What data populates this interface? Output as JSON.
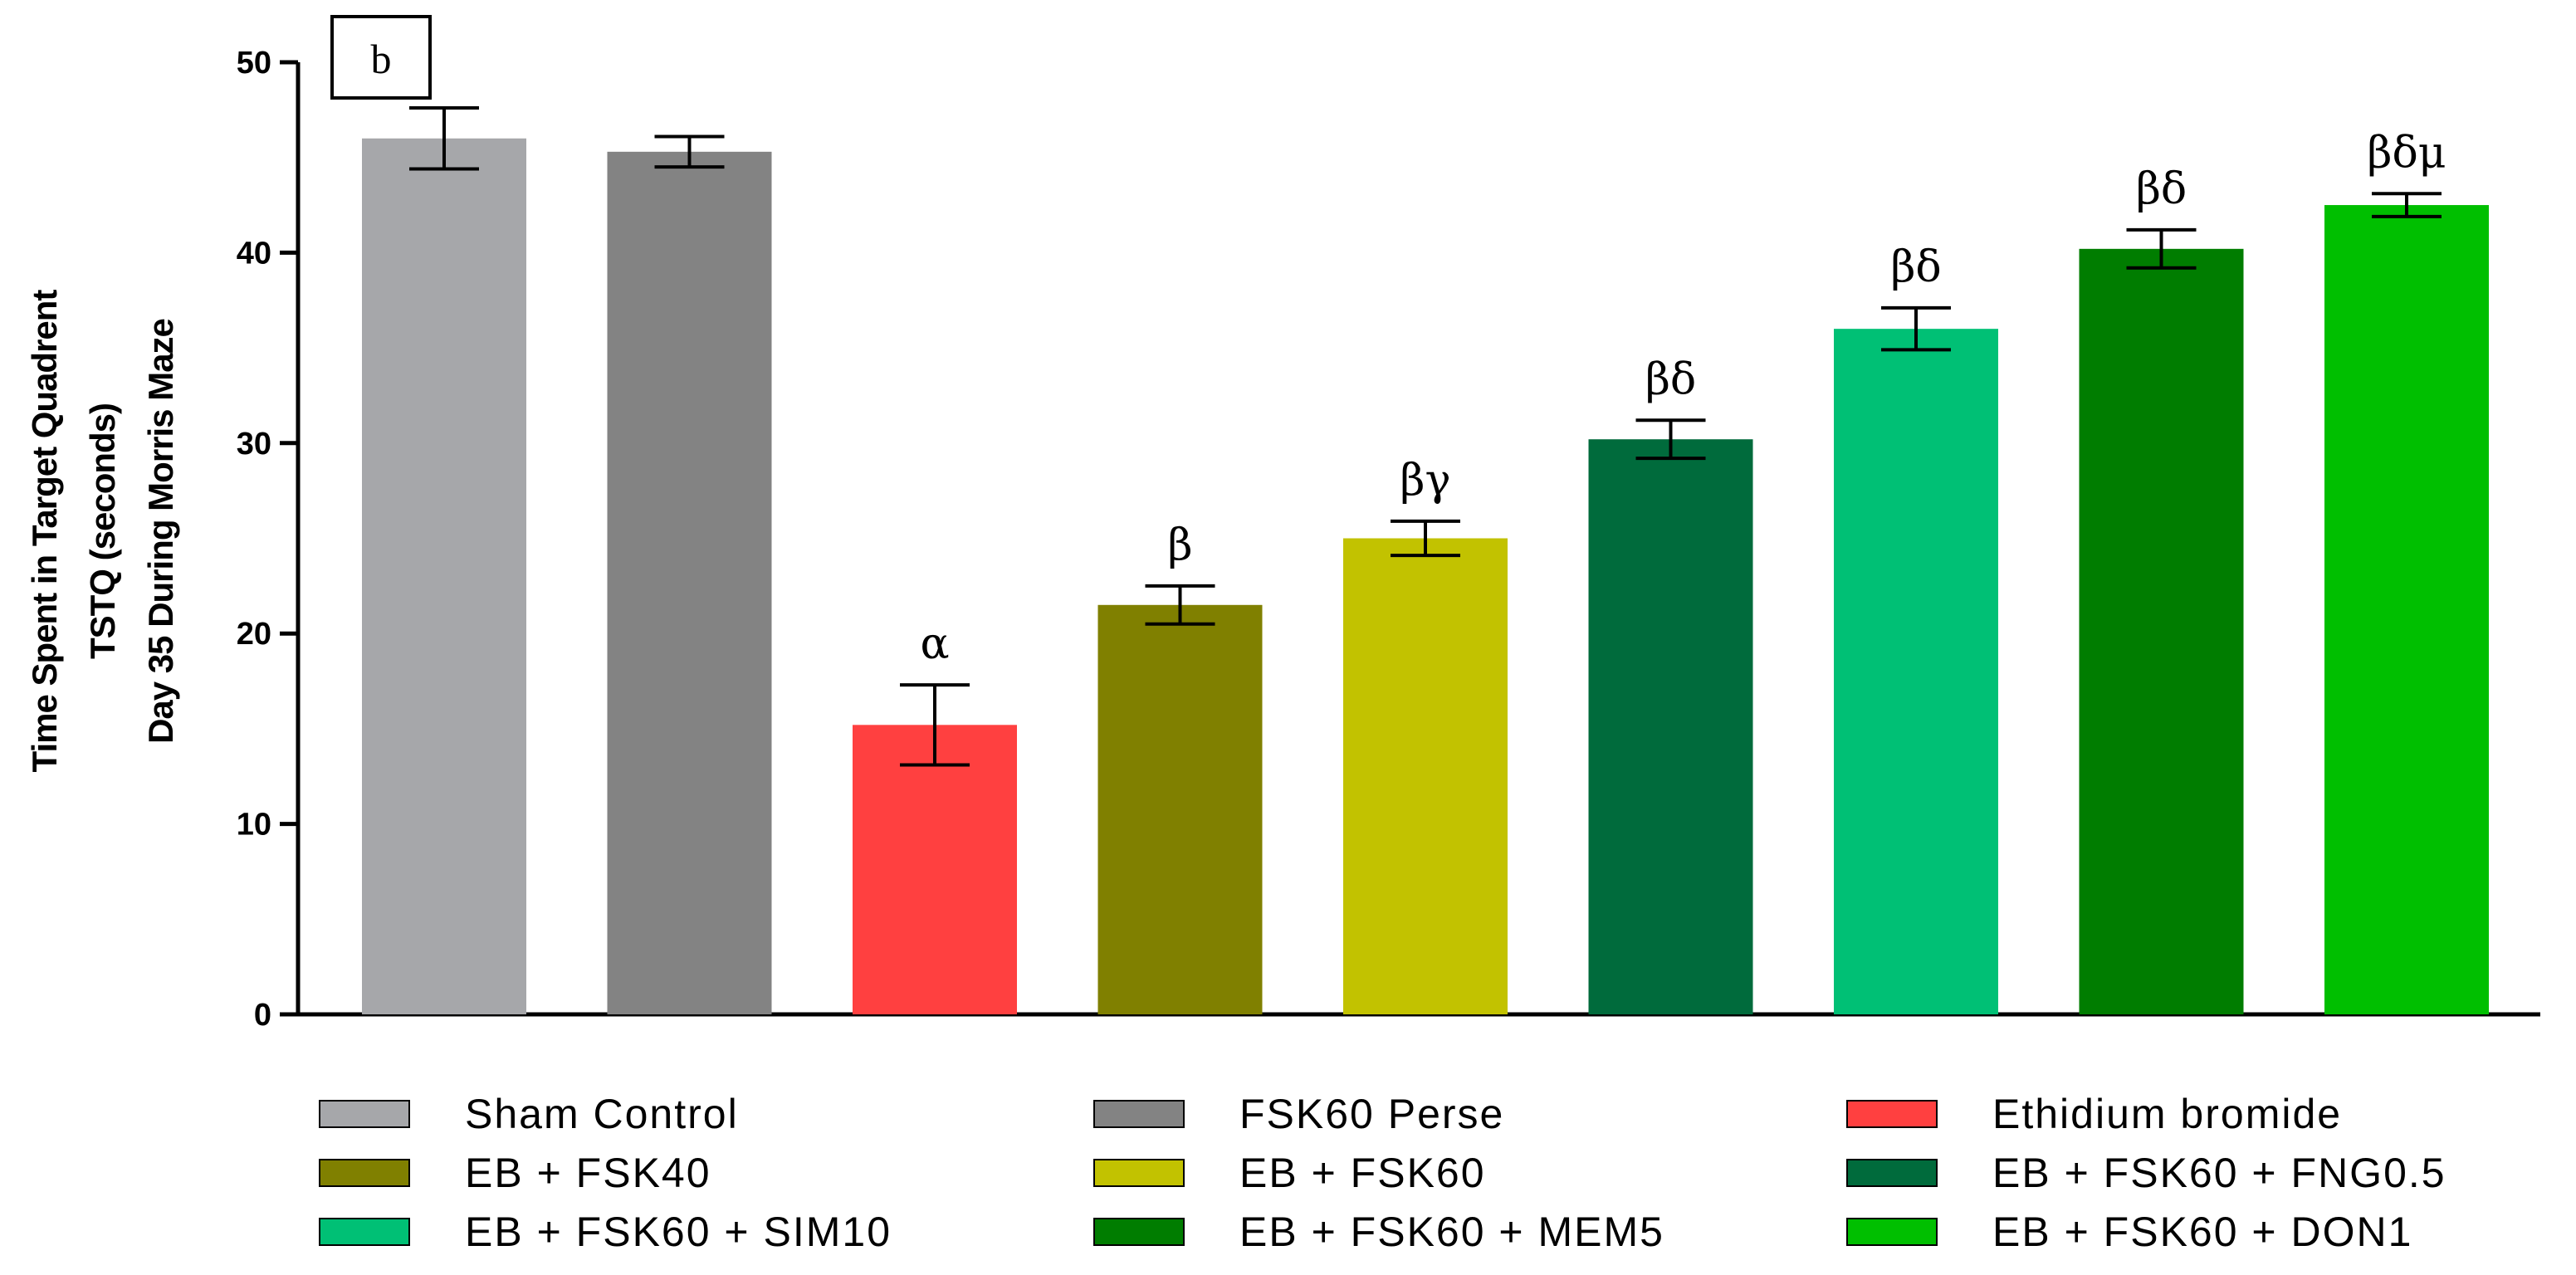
{
  "chart_data": {
    "type": "bar",
    "panel_label": "b",
    "ylabel_lines": [
      "Time Spent in Target Quadrent",
      "TSTQ (seconds)",
      "Day 35 During Morris Maze"
    ],
    "ylim": [
      0,
      50
    ],
    "yticks": [
      0,
      10,
      20,
      30,
      40,
      50
    ],
    "grid": false,
    "legend_position": "bottom",
    "bars": [
      {
        "name": "Sham Control",
        "value": 46.0,
        "error": 1.6,
        "color": "#a6a7aa",
        "sig": ""
      },
      {
        "name": "FSK60 Perse",
        "value": 45.3,
        "error": 0.8,
        "color": "#838383",
        "sig": ""
      },
      {
        "name": "Ethidium bromide",
        "value": 15.2,
        "error": 2.1,
        "color": "#ff4040",
        "sig": "α"
      },
      {
        "name": "EB + FSK40",
        "value": 21.5,
        "error": 1.0,
        "color": "#808000",
        "sig": "β"
      },
      {
        "name": "EB + FSK60",
        "value": 25.0,
        "error": 0.9,
        "color": "#c2c200",
        "sig": "βγ"
      },
      {
        "name": "EB + FSK60 + FNG0.5",
        "value": 30.2,
        "error": 1.0,
        "color": "#006b3c",
        "sig": "βδ"
      },
      {
        "name": "EB + FSK60 + SIM10",
        "value": 36.0,
        "error": 1.1,
        "color": "#00c075",
        "sig": "βδ"
      },
      {
        "name": "EB + FSK60 + MEM5",
        "value": 40.2,
        "error": 1.0,
        "color": "#007d00",
        "sig": "βδ"
      },
      {
        "name": "EB + FSK60 + DON1",
        "value": 42.5,
        "error": 0.6,
        "color": "#00bf00",
        "sig": "βδμ"
      }
    ]
  }
}
